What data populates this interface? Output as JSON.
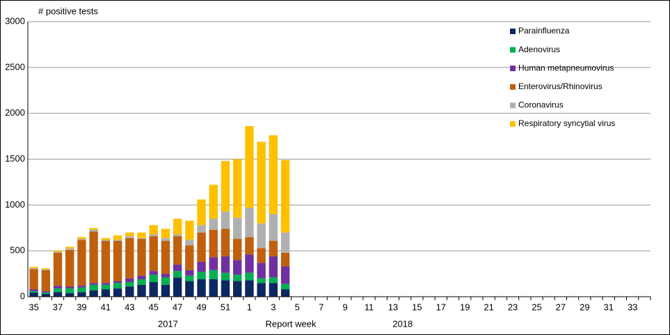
{
  "chart_data": {
    "type": "stacked_bar",
    "ylabel": "# positive tests",
    "xlabel": "Report week",
    "year_labels": [
      "2017",
      "2018"
    ],
    "categories": [
      "35",
      null,
      "37",
      null,
      "39",
      null,
      "41",
      null,
      "43",
      null,
      "45",
      null,
      "47",
      null,
      "49",
      null,
      "51",
      null,
      "1",
      null,
      "3",
      null,
      "5",
      null,
      "7",
      null,
      "9",
      null,
      "11",
      null,
      "13",
      null,
      "15",
      null,
      "17",
      null,
      "19",
      null,
      "21",
      null,
      "23",
      null,
      "25",
      null,
      "27",
      null,
      "29",
      null,
      "31",
      null,
      "33",
      null
    ],
    "series": [
      {
        "name": "Parainfluenza",
        "color": "#0d2860",
        "values": [
          45,
          30,
          50,
          40,
          50,
          70,
          80,
          90,
          110,
          130,
          160,
          130,
          210,
          170,
          190,
          190,
          180,
          170,
          180,
          150,
          150,
          80,
          null,
          null,
          null,
          null,
          null,
          null,
          null,
          null,
          null,
          null,
          null,
          null,
          null,
          null,
          null,
          null,
          null,
          null,
          null,
          null,
          null,
          null,
          null,
          null,
          null,
          null,
          null,
          null,
          null,
          null
        ]
      },
      {
        "name": "Adenovirus",
        "color": "#00b050",
        "values": [
          15,
          15,
          40,
          50,
          50,
          60,
          50,
          60,
          50,
          60,
          80,
          80,
          70,
          60,
          80,
          100,
          80,
          70,
          80,
          50,
          60,
          60,
          null,
          null,
          null,
          null,
          null,
          null,
          null,
          null,
          null,
          null,
          null,
          null,
          null,
          null,
          null,
          null,
          null,
          null,
          null,
          null,
          null,
          null,
          null,
          null,
          null,
          null,
          null,
          null,
          null,
          null
        ]
      },
      {
        "name": "Human metapneumovirus",
        "color": "#7030a0",
        "values": [
          20,
          15,
          30,
          20,
          20,
          20,
          20,
          20,
          40,
          40,
          40,
          40,
          70,
          60,
          110,
          140,
          180,
          160,
          200,
          170,
          230,
          190,
          null,
          null,
          null,
          null,
          null,
          null,
          null,
          null,
          null,
          null,
          null,
          null,
          null,
          null,
          null,
          null,
          null,
          null,
          null,
          null,
          null,
          null,
          null,
          null,
          null,
          null,
          null,
          null,
          null,
          null
        ]
      },
      {
        "name": "Enterovirus/Rhinovirus",
        "color": "#c0600e",
        "values": [
          220,
          230,
          360,
          400,
          500,
          560,
          460,
          440,
          440,
          400,
          380,
          360,
          310,
          270,
          320,
          300,
          300,
          230,
          190,
          160,
          170,
          150,
          null,
          null,
          null,
          null,
          null,
          null,
          null,
          null,
          null,
          null,
          null,
          null,
          null,
          null,
          null,
          null,
          null,
          null,
          null,
          null,
          null,
          null,
          null,
          null,
          null,
          null,
          null,
          null,
          null,
          null
        ]
      },
      {
        "name": "Coronavirus",
        "color": "#b0b0b0",
        "values": [
          10,
          10,
          10,
          15,
          10,
          20,
          10,
          10,
          20,
          10,
          20,
          30,
          20,
          60,
          80,
          120,
          190,
          230,
          320,
          270,
          290,
          220,
          null,
          null,
          null,
          null,
          null,
          null,
          null,
          null,
          null,
          null,
          null,
          null,
          null,
          null,
          null,
          null,
          null,
          null,
          null,
          null,
          null,
          null,
          null,
          null,
          null,
          null,
          null,
          null,
          null,
          null
        ]
      },
      {
        "name": "Respiratory syncytial virus",
        "color": "#ffc000",
        "values": [
          15,
          10,
          15,
          20,
          20,
          20,
          20,
          50,
          40,
          60,
          100,
          100,
          170,
          210,
          280,
          370,
          550,
          640,
          890,
          890,
          860,
          790,
          null,
          null,
          null,
          null,
          null,
          null,
          null,
          null,
          null,
          null,
          null,
          null,
          null,
          null,
          null,
          null,
          null,
          null,
          null,
          null,
          null,
          null,
          null,
          null,
          null,
          null,
          null,
          null,
          null,
          null
        ]
      }
    ],
    "ylim": [
      0,
      3000
    ],
    "yticks": [
      0,
      500,
      1000,
      1500,
      2000,
      2500,
      3000
    ],
    "grid": true,
    "legend": "top-right"
  }
}
